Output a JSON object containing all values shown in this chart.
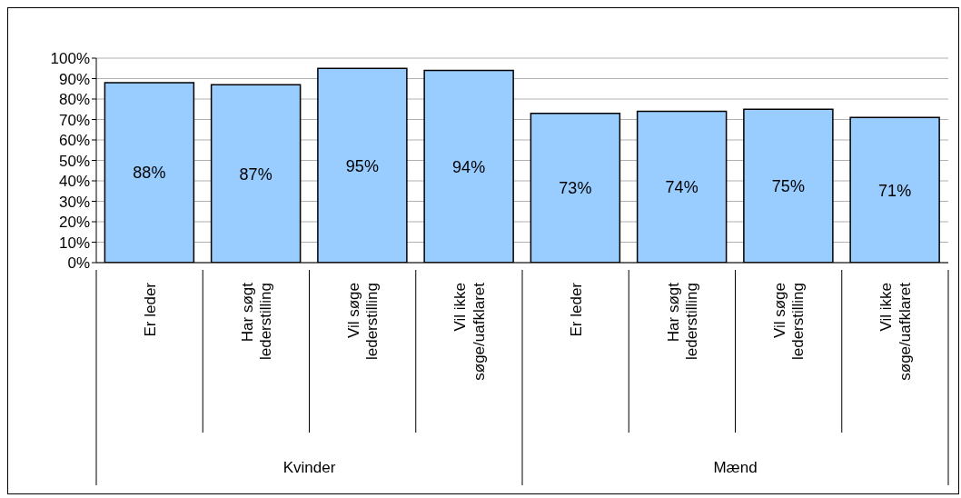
{
  "chart_data": {
    "type": "bar",
    "categories": [
      "Er leder",
      "Har søgt lederstilling",
      "Vil søge lederstilling",
      "Vil ikke søge/uafklaret",
      "Er leder",
      "Har søgt lederstilling",
      "Vil søge lederstilling",
      "Vil ikke søge/uafklaret"
    ],
    "values": [
      88,
      87,
      95,
      94,
      73,
      74,
      75,
      71
    ],
    "value_labels": [
      "88%",
      "87%",
      "95%",
      "94%",
      "73%",
      "74%",
      "75%",
      "71%"
    ],
    "color": "#99ccff",
    "ylim": [
      0,
      100
    ],
    "yticks": [
      {
        "value": 0,
        "label": "0%"
      },
      {
        "value": 10,
        "label": "10%"
      },
      {
        "value": 20,
        "label": "20%"
      },
      {
        "value": 30,
        "label": "30%"
      },
      {
        "value": 40,
        "label": "40%"
      },
      {
        "value": 50,
        "label": "50%"
      },
      {
        "value": 60,
        "label": "60%"
      },
      {
        "value": 70,
        "label": "70%"
      },
      {
        "value": 80,
        "label": "80%"
      },
      {
        "value": 90,
        "label": "90%"
      },
      {
        "value": 100,
        "label": "100%"
      }
    ],
    "grid": "y",
    "annotations": [
      "Kvinder",
      "Mænd"
    ]
  }
}
